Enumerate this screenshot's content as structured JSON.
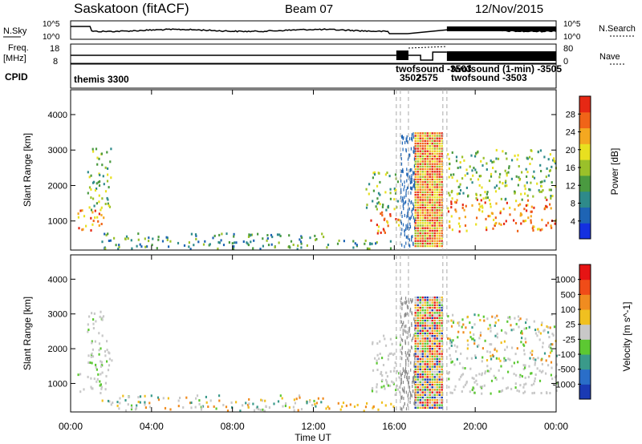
{
  "header": {
    "station": "Saskatoon (fitACF)",
    "beam": "Beam 07",
    "date": "12/Nov/2015"
  },
  "strip_labels": {
    "nsky": "N.Sky",
    "nsearch": "N.Search",
    "freq_line1": "Freq.",
    "freq_line2": "[MHz]",
    "nave": "Nave",
    "cpid": "CPID"
  },
  "strip_ticks": {
    "noise_left": [
      "10^5",
      "10^0"
    ],
    "noise_right": [
      "10^5",
      "10^0"
    ],
    "freq_left": [
      "18",
      "8"
    ],
    "nave_right": [
      "80",
      "0"
    ]
  },
  "cpid_labels": [
    {
      "text": "themis 3300",
      "hour": 0.1
    },
    {
      "text": "twofsound -3503",
      "hour": 16.2
    },
    {
      "text": "3502",
      "hour": 16.2
    },
    {
      "text": "2575",
      "hour": 16.9
    },
    {
      "text": "twofsound (1-min) -3505",
      "hour": 18.6
    },
    {
      "text": "twofsound -3503",
      "hour": 18.6
    }
  ],
  "chart_data": [
    {
      "type": "heatmap",
      "panel": "power",
      "ylabel": "Slant Range [km]",
      "ylim": [
        180,
        4700
      ],
      "yticks": [
        1000,
        2000,
        3000,
        4000
      ],
      "xlim_hours": [
        0,
        24
      ],
      "colorbar": {
        "label": "Power [dB]",
        "ticks": [
          "4",
          "8",
          "12",
          "16",
          "20",
          "24",
          "28"
        ],
        "colors": [
          "#1430e0",
          "#1e64b4",
          "#2e8a8a",
          "#4a9a40",
          "#9ac02a",
          "#e8e020",
          "#f4a820",
          "#f06418",
          "#e62814"
        ]
      },
      "scatter_regions": [
        {
          "t0": 0.3,
          "t1": 1.8,
          "r0": 700,
          "r1": 1300,
          "level": "high"
        },
        {
          "t0": 0.8,
          "t1": 2.0,
          "r0": 1300,
          "r1": 3100,
          "level": "mid"
        },
        {
          "t0": 1.5,
          "t1": 12.5,
          "r0": 200,
          "r1": 650,
          "level": "low"
        },
        {
          "t0": 12.5,
          "t1": 16.0,
          "r0": 200,
          "r1": 450,
          "level": "low"
        },
        {
          "t0": 14.8,
          "t1": 16.3,
          "r0": 650,
          "r1": 1300,
          "level": "high"
        },
        {
          "t0": 14.5,
          "t1": 16.2,
          "r0": 1300,
          "r1": 2400,
          "level": "mid"
        },
        {
          "t0": 18.6,
          "t1": 24.0,
          "r0": 700,
          "r1": 1600,
          "level": "high"
        },
        {
          "t0": 18.6,
          "t1": 24.0,
          "r0": 1600,
          "r1": 3000,
          "level": "mid"
        }
      ]
    },
    {
      "type": "heatmap",
      "panel": "velocity",
      "ylabel": "Slant Range [km]",
      "ylim": [
        180,
        4700
      ],
      "yticks": [
        1000,
        2000,
        3000,
        4000
      ],
      "xlim_hours": [
        0,
        24
      ],
      "colorbar": {
        "label": "Velocity [m s^-1]",
        "ticks": [
          "1000",
          "500",
          "100",
          "25",
          "-25",
          "-100",
          "-500",
          "-1000"
        ],
        "colors": [
          "#1a3ab4",
          "#2a6ec8",
          "#3a9a8a",
          "#5cc832",
          "#c8c8c8",
          "#f0c020",
          "#f08c20",
          "#f04c18",
          "#e61414"
        ]
      },
      "scatter_regions": [
        {
          "t0": 0.3,
          "t1": 1.8,
          "r0": 700,
          "r1": 1300,
          "level": "ground"
        },
        {
          "t0": 0.8,
          "t1": 2.0,
          "r0": 1300,
          "r1": 3100,
          "level": "ground"
        },
        {
          "t0": 1.5,
          "t1": 12.5,
          "r0": 200,
          "r1": 650,
          "level": "mixed"
        },
        {
          "t0": 12.5,
          "t1": 16.0,
          "r0": 200,
          "r1": 450,
          "level": "neg"
        },
        {
          "t0": 14.8,
          "t1": 16.3,
          "r0": 650,
          "r1": 2400,
          "level": "ground"
        },
        {
          "t0": 18.6,
          "t1": 24.0,
          "r0": 700,
          "r1": 1600,
          "level": "ground"
        },
        {
          "t0": 18.6,
          "t1": 24.0,
          "r0": 1600,
          "r1": 3000,
          "level": "mixed"
        }
      ]
    }
  ],
  "x_axis": {
    "label": "Time UT",
    "ticks": [
      "00:00",
      "04:00",
      "08:00",
      "12:00",
      "16:00",
      "20:00",
      "00:00"
    ]
  }
}
